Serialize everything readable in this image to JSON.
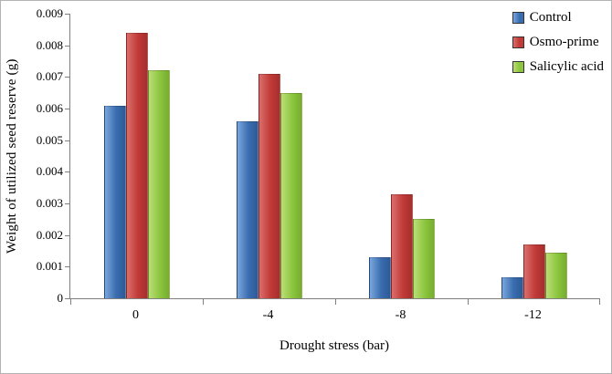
{
  "chart_data": {
    "type": "bar",
    "title": "",
    "xlabel": "Drought stress (bar)",
    "ylabel": "Weight of utilized seed reserve (g)",
    "categories": [
      "0",
      "-4",
      "-8",
      "-12"
    ],
    "series": [
      {
        "name": "Control",
        "color": "#3a6db0",
        "values": [
          0.0061,
          0.0056,
          0.0013,
          0.00065
        ]
      },
      {
        "name": "Osmo-prime",
        "color": "#c13a38",
        "values": [
          0.0084,
          0.0071,
          0.0033,
          0.0017
        ]
      },
      {
        "name": "Salicylic acid",
        "color": "#8cc63e",
        "values": [
          0.0072,
          0.0065,
          0.0025,
          0.00145
        ]
      }
    ],
    "ylim": [
      0,
      0.009
    ],
    "yticks": [
      0,
      0.001,
      0.002,
      0.003,
      0.004,
      0.005,
      0.006,
      0.007,
      0.008,
      0.009
    ],
    "grid": false,
    "legend_position": "top-right"
  }
}
